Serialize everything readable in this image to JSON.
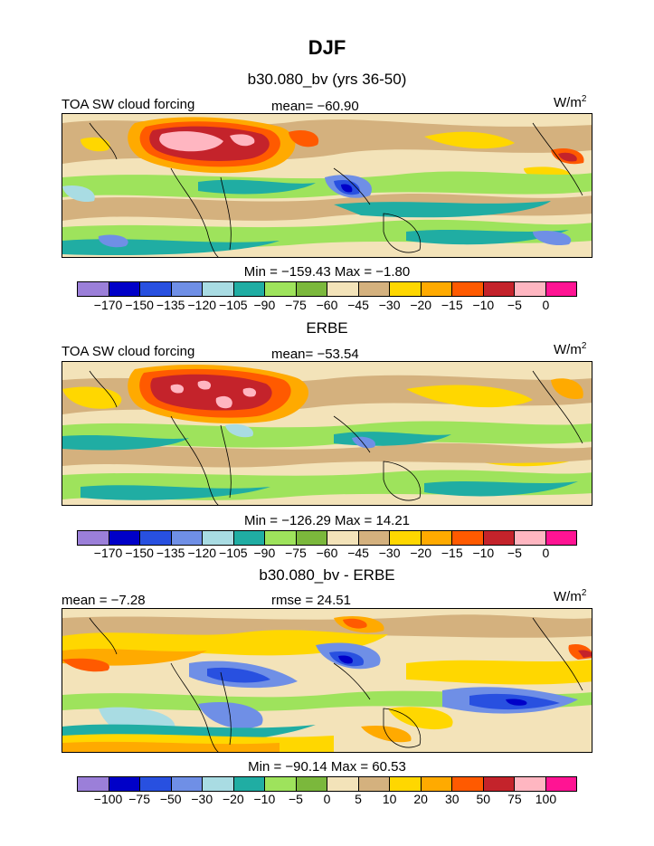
{
  "title": "DJF",
  "panels": [
    {
      "heading": "b30.080_bv (yrs 36-50)",
      "left_label": "TOA SW cloud forcing",
      "center_label": "mean= −60.90",
      "units": "W/m",
      "units_sup": "2",
      "minmax": "Min = −159.43 Max =  −1.80",
      "colorbar": {
        "colors": [
          "#9b7fd9",
          "#0000c8",
          "#2850e0",
          "#6f8fe6",
          "#a9dce3",
          "#20ada3",
          "#9ee35c",
          "#7bb83c",
          "#f3e3b9",
          "#d4b17e",
          "#ffd700",
          "#ffaa00",
          "#ff5a00",
          "#c4232b",
          "#ffb6c1",
          "#ff1493"
        ],
        "ticks": [
          "−170",
          "−150",
          "−135",
          "−120",
          "−105",
          "−90",
          "−75",
          "−60",
          "−45",
          "−30",
          "−20",
          "−15",
          "−10",
          "−5",
          "0"
        ]
      }
    },
    {
      "heading": "ERBE",
      "left_label": "TOA SW cloud forcing",
      "center_label": "mean= −53.54",
      "units": "W/m",
      "units_sup": "2",
      "minmax": "Min = −126.29 Max =   14.21",
      "colorbar": {
        "colors": [
          "#9b7fd9",
          "#0000c8",
          "#2850e0",
          "#6f8fe6",
          "#a9dce3",
          "#20ada3",
          "#9ee35c",
          "#7bb83c",
          "#f3e3b9",
          "#d4b17e",
          "#ffd700",
          "#ffaa00",
          "#ff5a00",
          "#c4232b",
          "#ffb6c1",
          "#ff1493"
        ],
        "ticks": [
          "−170",
          "−150",
          "−135",
          "−120",
          "−105",
          "−90",
          "−75",
          "−60",
          "−45",
          "−30",
          "−20",
          "−15",
          "−10",
          "−5",
          "0"
        ]
      }
    },
    {
      "heading": "b30.080_bv - ERBE",
      "left_label": "mean =   −7.28",
      "center_label": "rmse =  24.51",
      "units": "W/m",
      "units_sup": "2",
      "minmax": "Min = −90.14 Max =   60.53",
      "colorbar": {
        "colors": [
          "#9b7fd9",
          "#0000c8",
          "#2850e0",
          "#6f8fe6",
          "#a9dce3",
          "#20ada3",
          "#9ee35c",
          "#7bb83c",
          "#f3e3b9",
          "#d4b17e",
          "#ffd700",
          "#ffaa00",
          "#ff5a00",
          "#c4232b",
          "#ffb6c1",
          "#ff1493"
        ],
        "ticks": [
          "−100",
          "−75",
          "−50",
          "−30",
          "−20",
          "−10",
          "−5",
          "0",
          "5",
          "10",
          "20",
          "30",
          "50",
          "75",
          "100"
        ]
      }
    }
  ],
  "map_palette": {
    "sea_bg": "#f3e3b9",
    "tan": "#d4b17e",
    "yellow": "#ffd700",
    "orange": "#ffaa00",
    "redorange": "#ff5a00",
    "darkred": "#c4232b",
    "pink": "#ffb6c1",
    "green": "#9ee35c",
    "olive": "#7bb83c",
    "teal": "#20ada3",
    "lightblue": "#a9dce3",
    "blue": "#6f8fe6",
    "royal": "#2850e0",
    "navy": "#0000c8",
    "coast": "#000000"
  }
}
